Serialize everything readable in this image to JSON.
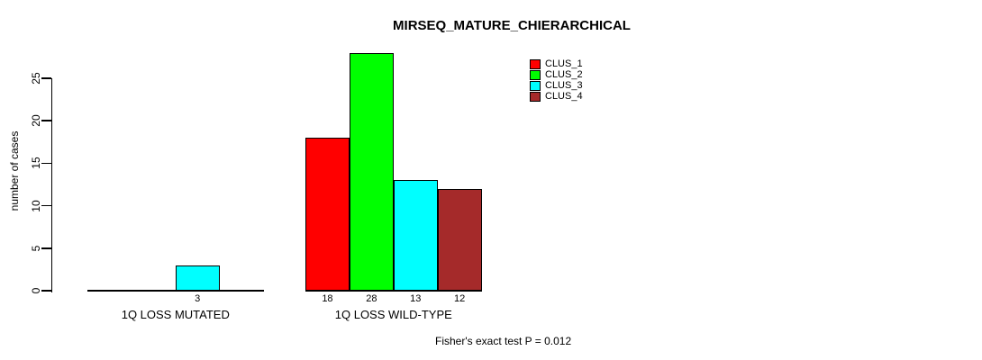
{
  "figure": {
    "title": "MIRSEQ_MATURE_CHIERARCHICAL",
    "annotation": "Fisher's exact test P = 0.012"
  },
  "chart_data": {
    "type": "bar",
    "title": "MIRSEQ_MATURE_CHIERARCHICAL",
    "xlabel": "",
    "ylabel": "number of cases",
    "ylim": [
      0,
      28
    ],
    "yticks": [
      0,
      5,
      10,
      15,
      20,
      25
    ],
    "grid": false,
    "legend_position": "top-right",
    "categories": [
      "1Q LOSS MUTATED",
      "1Q LOSS WILD-TYPE"
    ],
    "series": [
      {
        "name": "CLUS_1",
        "color": "#FF0000",
        "values": [
          0,
          18
        ]
      },
      {
        "name": "CLUS_2",
        "color": "#00FF00",
        "values": [
          0,
          28
        ]
      },
      {
        "name": "CLUS_3",
        "color": "#00FFFF",
        "values": [
          3,
          13
        ]
      },
      {
        "name": "CLUS_4",
        "color": "#A52A2A",
        "values": [
          0,
          12
        ]
      }
    ],
    "groups": [
      {
        "label": "1Q LOSS MUTATED",
        "values": [
          0,
          0,
          3,
          0
        ],
        "bar_labels": [
          "",
          "",
          "3",
          ""
        ]
      },
      {
        "label": "1Q LOSS WILD-TYPE",
        "values": [
          18,
          28,
          13,
          12
        ],
        "bar_labels": [
          "18",
          "28",
          "13",
          "12"
        ]
      }
    ],
    "annotation": "Fisher's exact test P = 0.012"
  }
}
